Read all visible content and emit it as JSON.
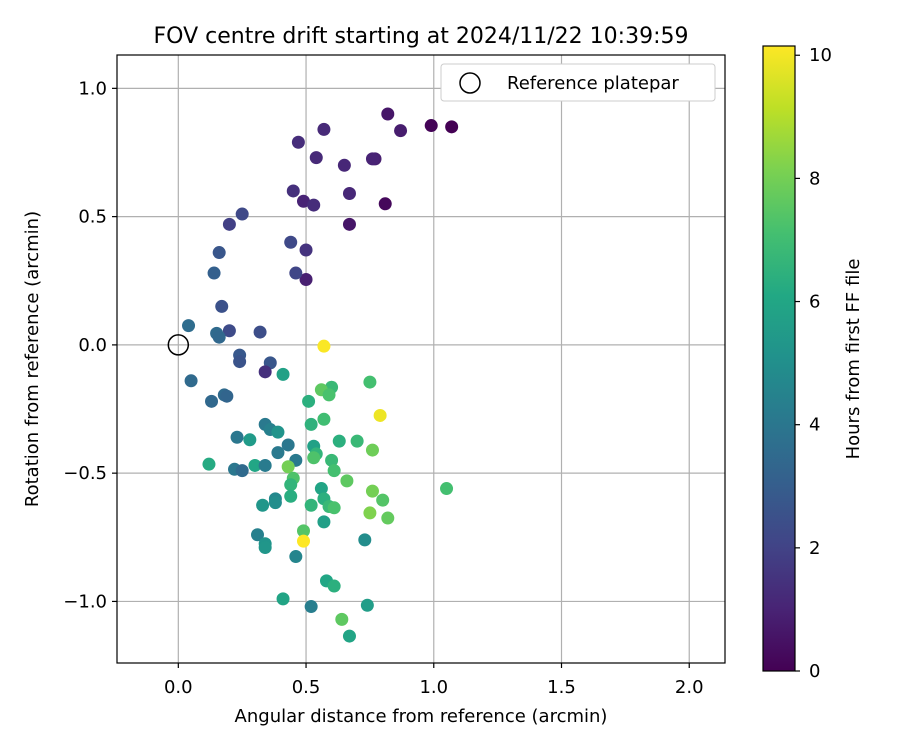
{
  "chart_data": {
    "type": "scatter",
    "title": "FOV centre drift starting at 2024/11/22 10:39:59",
    "xlabel": "Angular distance from reference (arcmin)",
    "ylabel": "Rotation from reference (arcmin)",
    "xlim": [
      -0.24,
      2.14
    ],
    "ylim": [
      -1.24,
      1.13
    ],
    "xticks": [
      0.0,
      0.5,
      1.0,
      1.5,
      2.0
    ],
    "xtick_labels": [
      "0.0",
      "0.5",
      "1.0",
      "1.5",
      "2.0"
    ],
    "yticks": [
      -1.0,
      -0.5,
      0.0,
      0.5,
      1.0
    ],
    "ytick_labels": [
      "−1.0",
      "−0.5",
      "0.0",
      "0.5",
      "1.0"
    ],
    "grid": true,
    "legend": {
      "placement": "top-right",
      "entries": [
        {
          "label": "Reference platepar",
          "marker": "open-circle"
        }
      ]
    },
    "reference_point": {
      "x": 0.0,
      "y": 0.0
    },
    "colorbar": {
      "label": "Hours from first FF file",
      "colormap": "viridis",
      "range": [
        0,
        10.15
      ],
      "ticks": [
        0,
        2,
        4,
        6,
        8,
        10
      ],
      "tick_labels": [
        "0",
        "2",
        "4",
        "6",
        "8",
        "10"
      ]
    },
    "points": [
      {
        "x": 1.07,
        "y": 0.85,
        "h": 0.0
      },
      {
        "x": 0.99,
        "y": 0.855,
        "h": 0.1
      },
      {
        "x": 0.81,
        "y": 0.55,
        "h": 0.2
      },
      {
        "x": 0.82,
        "y": 0.9,
        "h": 0.6
      },
      {
        "x": 0.87,
        "y": 0.835,
        "h": 0.8
      },
      {
        "x": 0.67,
        "y": 0.47,
        "h": 0.6
      },
      {
        "x": 0.77,
        "y": 0.725,
        "h": 0.9
      },
      {
        "x": 0.76,
        "y": 0.725,
        "h": 1.0
      },
      {
        "x": 0.67,
        "y": 0.59,
        "h": 1.1
      },
      {
        "x": 0.65,
        "y": 0.7,
        "h": 1.1
      },
      {
        "x": 0.57,
        "y": 0.84,
        "h": 1.2
      },
      {
        "x": 0.54,
        "y": 0.73,
        "h": 1.2
      },
      {
        "x": 0.47,
        "y": 0.79,
        "h": 1.3
      },
      {
        "x": 0.49,
        "y": 0.56,
        "h": 1.0
      },
      {
        "x": 0.53,
        "y": 0.545,
        "h": 1.3
      },
      {
        "x": 0.45,
        "y": 0.6,
        "h": 1.4
      },
      {
        "x": 0.5,
        "y": 0.255,
        "h": 0.9
      },
      {
        "x": 0.5,
        "y": 0.37,
        "h": 1.5
      },
      {
        "x": 0.46,
        "y": 0.28,
        "h": 2.1
      },
      {
        "x": 0.44,
        "y": 0.4,
        "h": 2.2
      },
      {
        "x": 0.25,
        "y": 0.51,
        "h": 2.2
      },
      {
        "x": 0.2,
        "y": 0.47,
        "h": 1.9
      },
      {
        "x": 0.16,
        "y": 0.36,
        "h": 2.7
      },
      {
        "x": 0.14,
        "y": 0.28,
        "h": 3.1
      },
      {
        "x": 0.17,
        "y": 0.15,
        "h": 2.5
      },
      {
        "x": 0.2,
        "y": 0.055,
        "h": 2.3
      },
      {
        "x": 0.32,
        "y": 0.05,
        "h": 2.4
      },
      {
        "x": 0.04,
        "y": 0.075,
        "h": 3.6
      },
      {
        "x": 0.15,
        "y": 0.045,
        "h": 3.5
      },
      {
        "x": 0.16,
        "y": 0.03,
        "h": 3.4
      },
      {
        "x": 0.24,
        "y": -0.04,
        "h": 2.8
      },
      {
        "x": 0.24,
        "y": -0.065,
        "h": 2.6
      },
      {
        "x": 0.36,
        "y": -0.07,
        "h": 2.7
      },
      {
        "x": 0.34,
        "y": -0.105,
        "h": 1.4
      },
      {
        "x": 0.05,
        "y": -0.14,
        "h": 3.5
      },
      {
        "x": 0.18,
        "y": -0.195,
        "h": 3.5
      },
      {
        "x": 0.19,
        "y": -0.2,
        "h": 3.3
      },
      {
        "x": 0.13,
        "y": -0.22,
        "h": 3.4
      },
      {
        "x": 0.41,
        "y": -0.115,
        "h": 5.8
      },
      {
        "x": 0.57,
        "y": -0.005,
        "h": 10.1
      },
      {
        "x": 0.6,
        "y": -0.165,
        "h": 6.8
      },
      {
        "x": 0.56,
        "y": -0.175,
        "h": 7.6
      },
      {
        "x": 0.59,
        "y": -0.195,
        "h": 7.2
      },
      {
        "x": 0.75,
        "y": -0.145,
        "h": 7.1
      },
      {
        "x": 0.51,
        "y": -0.22,
        "h": 6.4
      },
      {
        "x": 0.57,
        "y": -0.29,
        "h": 7.0
      },
      {
        "x": 0.79,
        "y": -0.275,
        "h": 9.9
      },
      {
        "x": 0.52,
        "y": -0.31,
        "h": 6.5
      },
      {
        "x": 0.34,
        "y": -0.31,
        "h": 4.1
      },
      {
        "x": 0.36,
        "y": -0.33,
        "h": 4.4
      },
      {
        "x": 0.39,
        "y": -0.34,
        "h": 5.2
      },
      {
        "x": 0.23,
        "y": -0.36,
        "h": 4.0
      },
      {
        "x": 0.28,
        "y": -0.37,
        "h": 5.5
      },
      {
        "x": 0.63,
        "y": -0.375,
        "h": 6.4
      },
      {
        "x": 0.7,
        "y": -0.375,
        "h": 6.8
      },
      {
        "x": 0.43,
        "y": -0.39,
        "h": 4.0
      },
      {
        "x": 0.53,
        "y": -0.395,
        "h": 5.8
      },
      {
        "x": 0.39,
        "y": -0.42,
        "h": 4.1
      },
      {
        "x": 0.54,
        "y": -0.425,
        "h": 6.6
      },
      {
        "x": 0.53,
        "y": -0.44,
        "h": 7.3
      },
      {
        "x": 0.76,
        "y": -0.41,
        "h": 7.9
      },
      {
        "x": 0.46,
        "y": -0.45,
        "h": 4.1
      },
      {
        "x": 0.6,
        "y": -0.45,
        "h": 6.8
      },
      {
        "x": 0.12,
        "y": -0.465,
        "h": 6.2
      },
      {
        "x": 0.3,
        "y": -0.47,
        "h": 6.0
      },
      {
        "x": 0.34,
        "y": -0.47,
        "h": 4.2
      },
      {
        "x": 0.22,
        "y": -0.485,
        "h": 4.0
      },
      {
        "x": 0.43,
        "y": -0.475,
        "h": 8.0
      },
      {
        "x": 0.25,
        "y": -0.49,
        "h": 3.5
      },
      {
        "x": 0.61,
        "y": -0.49,
        "h": 7.1
      },
      {
        "x": 0.45,
        "y": -0.52,
        "h": 7.3
      },
      {
        "x": 0.44,
        "y": -0.545,
        "h": 6.6
      },
      {
        "x": 0.66,
        "y": -0.53,
        "h": 7.6
      },
      {
        "x": 0.56,
        "y": -0.56,
        "h": 5.9
      },
      {
        "x": 1.05,
        "y": -0.56,
        "h": 7.1
      },
      {
        "x": 0.76,
        "y": -0.57,
        "h": 8.0
      },
      {
        "x": 0.44,
        "y": -0.59,
        "h": 6.3
      },
      {
        "x": 0.57,
        "y": -0.6,
        "h": 6.4
      },
      {
        "x": 0.38,
        "y": -0.6,
        "h": 4.7
      },
      {
        "x": 0.38,
        "y": -0.615,
        "h": 4.9
      },
      {
        "x": 0.8,
        "y": -0.605,
        "h": 7.4
      },
      {
        "x": 0.33,
        "y": -0.625,
        "h": 5.3
      },
      {
        "x": 0.52,
        "y": -0.625,
        "h": 6.6
      },
      {
        "x": 0.59,
        "y": -0.63,
        "h": 6.8
      },
      {
        "x": 0.61,
        "y": -0.635,
        "h": 7.2
      },
      {
        "x": 0.75,
        "y": -0.655,
        "h": 8.2
      },
      {
        "x": 0.82,
        "y": -0.675,
        "h": 7.7
      },
      {
        "x": 0.57,
        "y": -0.69,
        "h": 5.7
      },
      {
        "x": 0.49,
        "y": -0.725,
        "h": 7.4
      },
      {
        "x": 0.31,
        "y": -0.74,
        "h": 4.4
      },
      {
        "x": 0.73,
        "y": -0.76,
        "h": 4.9
      },
      {
        "x": 0.49,
        "y": -0.765,
        "h": 10.2
      },
      {
        "x": 0.34,
        "y": -0.775,
        "h": 5.2
      },
      {
        "x": 0.34,
        "y": -0.79,
        "h": 5.3
      },
      {
        "x": 0.46,
        "y": -0.825,
        "h": 4.6
      },
      {
        "x": 0.58,
        "y": -0.92,
        "h": 6.0
      },
      {
        "x": 0.61,
        "y": -0.94,
        "h": 6.4
      },
      {
        "x": 0.41,
        "y": -0.99,
        "h": 5.9
      },
      {
        "x": 0.52,
        "y": -1.02,
        "h": 4.3
      },
      {
        "x": 0.74,
        "y": -1.015,
        "h": 5.6
      },
      {
        "x": 0.64,
        "y": -1.07,
        "h": 7.6
      },
      {
        "x": 0.67,
        "y": -1.135,
        "h": 5.9
      }
    ]
  }
}
